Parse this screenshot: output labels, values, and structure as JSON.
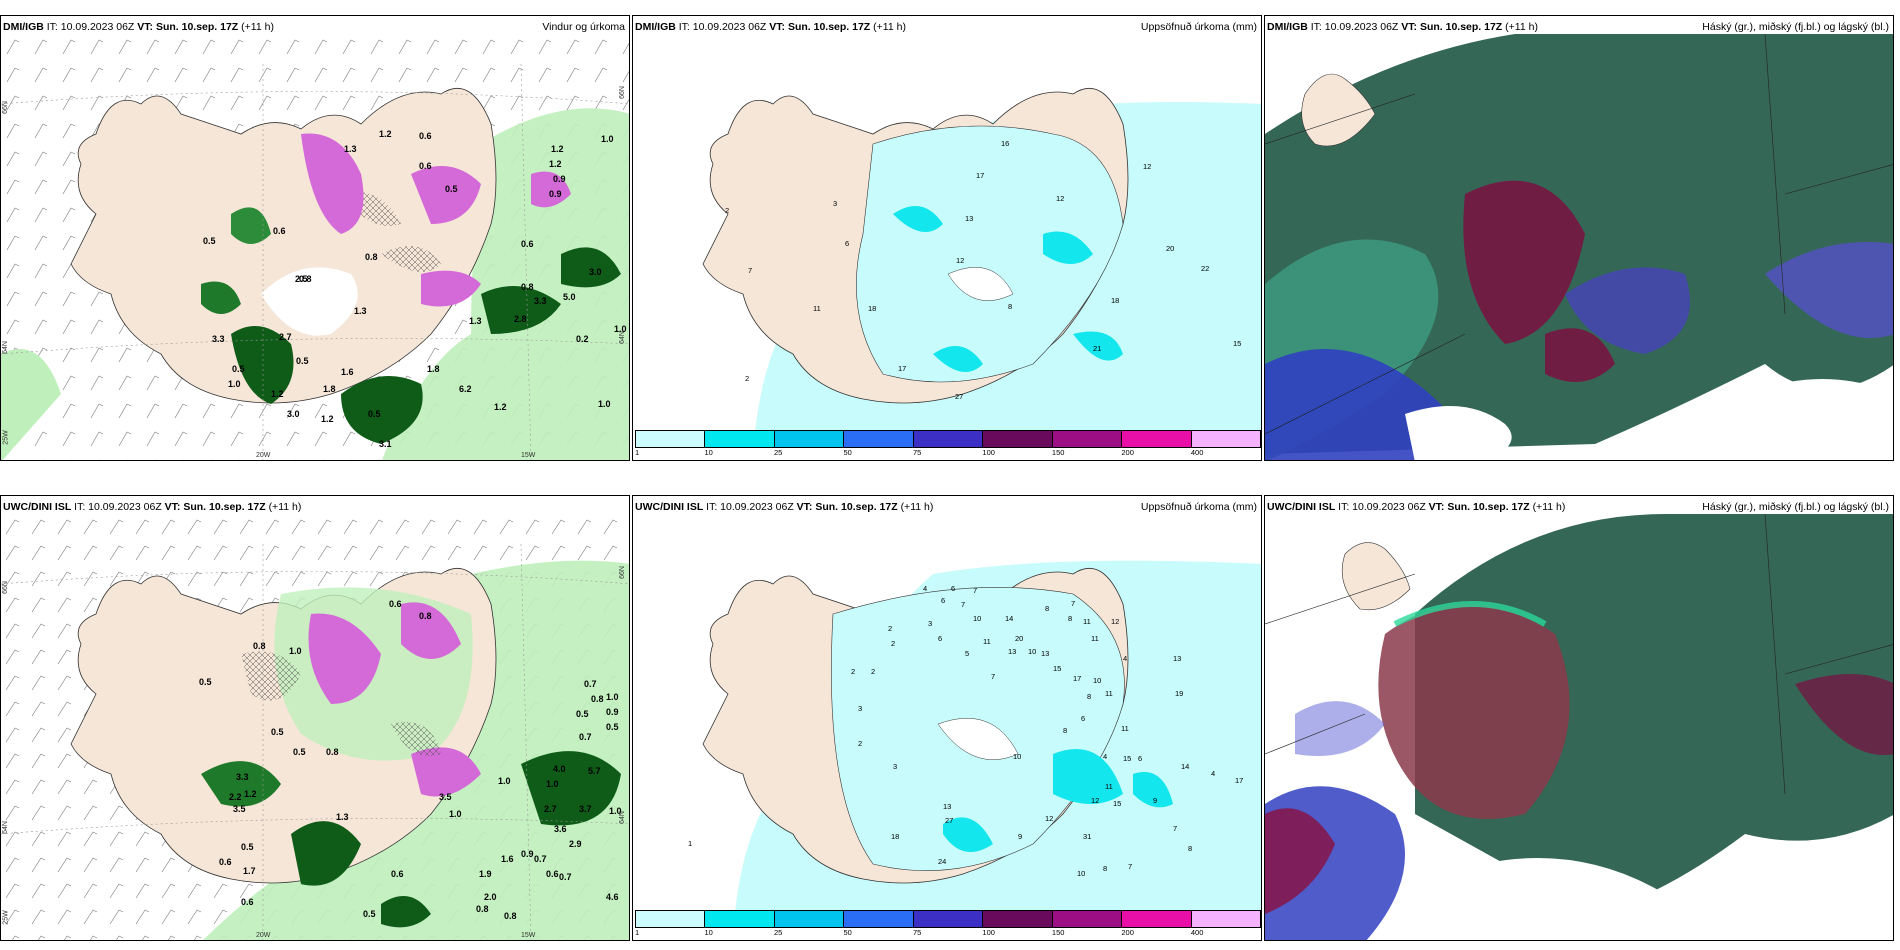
{
  "panels": {
    "top_left": {
      "source": "DMI/IGB",
      "it": "IT: 10.09.2023 06Z",
      "vt_label": "VT:",
      "vt": "Sun. 10.sep. 17Z",
      "lead": "(+11 h)",
      "title": "Vindur og úrkoma",
      "lat_labels": [
        "66N",
        "65N",
        "64N",
        "66N",
        "64N"
      ],
      "lon_labels": [
        "20W",
        "15W",
        "25W"
      ],
      "values": [
        "1.0",
        "1.2",
        "0.6",
        "0.6",
        "0.5",
        "1.3",
        "1.2",
        "0.9",
        "0.9",
        "1.2",
        "0.5",
        "0.6",
        "0.6",
        "3.0",
        "0.8",
        "0.8",
        "0.8",
        "5.0",
        "1.3",
        "1.3",
        "3.3",
        "2.8",
        "0.5",
        "1.0",
        "0.5",
        "3.3",
        "1.0",
        "1.8",
        "6.2",
        "3.1",
        "1.8",
        "1.0",
        "3.0",
        "0.2",
        "0.5",
        "1.6",
        "1.2",
        "2.5",
        "1.2",
        "1.2",
        "2.7"
      ]
    },
    "top_mid": {
      "source": "DMI/IGB",
      "it": "IT: 10.09.2023 06Z",
      "vt_label": "VT:",
      "vt": "Sun. 10.sep. 17Z",
      "lead": "(+11 h)",
      "title": "Uppsöfnuð úrkoma (mm)",
      "values": [
        "16",
        "12",
        "17",
        "12",
        "3",
        "13",
        "20",
        "22",
        "6",
        "12",
        "18",
        "8",
        "11",
        "18",
        "21",
        "15",
        "17",
        "2",
        "7",
        "2",
        "27"
      ]
    },
    "top_right": {
      "source": "DMI/IGB",
      "it": "IT: 10.09.2023 06Z",
      "vt_label": "VT:",
      "vt": "Sun. 10.sep. 17Z",
      "lead": "(+11 h)",
      "title": "Háský (gr.), miðský (fj.bl.) og lágský (bl.)"
    },
    "bottom_left": {
      "source": "UWC/DINI ISL",
      "it": "IT: 10.09.2023 06Z",
      "vt_label": "VT:",
      "vt": "Sun. 10.sep. 17Z",
      "lead": "(+11 h)",
      "title": "",
      "lat_labels": [
        "66N",
        "64N",
        "66N",
        "64N"
      ],
      "lon_labels": [
        "20W",
        "15W",
        "25W"
      ],
      "values": [
        "0.8",
        "1.0",
        "0.5",
        "0.6",
        "0.8",
        "0.5",
        "0.5",
        "0.8",
        "0.7",
        "0.5",
        "0.8",
        "0.7",
        "1.0",
        "0.9",
        "0.5",
        "1.0",
        "4.0",
        "5.7",
        "1.0",
        "1.0",
        "1.7",
        "2.7",
        "3.5",
        "3.7",
        "1.0",
        "3.6",
        "2.9",
        "1.3",
        "0.5",
        "3.3",
        "3.5",
        "1.6",
        "0.6",
        "0.6",
        "0.9",
        "0.7",
        "1.9",
        "0.6",
        "2.0",
        "0.7",
        "0.8",
        "4.6",
        "0.6",
        "0.5",
        "0.8",
        "2.2",
        "1.2"
      ]
    },
    "bottom_mid": {
      "source": "UWC/DINI ISL",
      "it": "IT: 10.09.2023 06Z",
      "vt_label": "VT:",
      "vt": "Sun. 10.sep. 17Z",
      "lead": "(+11 h)",
      "title": "Uppsöfnuð úrkoma (mm)",
      "values": [
        "4",
        "6",
        "7",
        "7",
        "8",
        "6",
        "7",
        "10",
        "14",
        "8",
        "11",
        "12",
        "2",
        "3",
        "11",
        "20",
        "11",
        "13",
        "2",
        "6",
        "5",
        "10",
        "13",
        "15",
        "17",
        "10",
        "8",
        "11",
        "7",
        "2",
        "2",
        "4",
        "6",
        "8",
        "11",
        "13",
        "19",
        "3",
        "10",
        "15",
        "6",
        "11",
        "15",
        "4",
        "14",
        "17",
        "12",
        "4",
        "9",
        "13",
        "27",
        "18",
        "24",
        "9",
        "31",
        "12",
        "10",
        "8",
        "7",
        "3",
        "2",
        "1",
        "7",
        "8"
      ]
    },
    "bottom_right": {
      "source": "UWC/DINI ISL",
      "it": "IT: 10.09.2023 06Z",
      "vt_label": "VT:",
      "vt": "Sun. 10.sep. 17Z",
      "lead": "(+11 h)",
      "title": "Háský (gr.), miðský (fj.bl.) og lágský (bl.)"
    }
  },
  "colorbar": {
    "ticks": [
      "1",
      "10",
      "25",
      "50",
      "75",
      "100",
      "150",
      "200",
      "400"
    ],
    "colors": [
      "#ccfcff",
      "#00e7f0",
      "#00c3ee",
      "#2a6ef5",
      "#3b2fc6",
      "#6a0a5c",
      "#9c0e84",
      "#e80fa8",
      "#f5b2ff"
    ]
  },
  "colors": {
    "land": "#f6e6d8",
    "light_cyan": "#c8fbfc",
    "cyan": "#14e6ee",
    "green_light": "#bff0bb",
    "green_dark": "#0f5c18",
    "magenta": "#d46ad8",
    "cloud_high": "#2a5f4e",
    "cloud_mid": "#7a1040",
    "cloud_low": "#3040c0"
  }
}
